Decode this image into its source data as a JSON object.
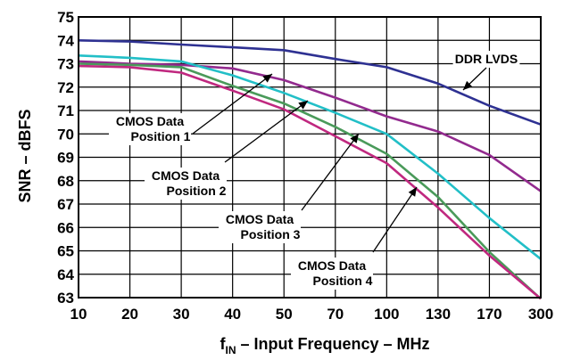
{
  "chart_data": {
    "type": "line",
    "x_axis_scale": "categorical (labels evenly spaced)",
    "x": [
      "10",
      "20",
      "30",
      "40",
      "50",
      "70",
      "100",
      "130",
      "170",
      "300"
    ],
    "xlabel_main": "f",
    "xlabel_sub": "IN",
    "xlabel_rest": " – Input Frequency – MHz",
    "ylabel": "SNR – dBFS",
    "ylim": [
      63,
      75
    ],
    "yticks": [
      "63",
      "64",
      "65",
      "66",
      "67",
      "68",
      "69",
      "70",
      "71",
      "72",
      "73",
      "74",
      "75"
    ],
    "grid": true,
    "series": [
      {
        "name": "DDR LVDS",
        "color": "#2e3192",
        "values": [
          74.0,
          73.95,
          73.82,
          73.7,
          73.58,
          73.2,
          72.85,
          72.15,
          71.2,
          70.4
        ]
      },
      {
        "name": "CMOS Data Position 1",
        "color": "#922a8e",
        "values": [
          73.1,
          73.0,
          72.95,
          72.8,
          72.3,
          71.55,
          70.75,
          70.1,
          69.1,
          67.55
        ]
      },
      {
        "name": "CMOS Data Position 2",
        "color": "#22bfc7",
        "values": [
          73.35,
          73.25,
          73.1,
          72.5,
          71.75,
          70.9,
          70.0,
          68.3,
          66.4,
          64.65
        ]
      },
      {
        "name": "CMOS Data Position 3",
        "color": "#4a9a5a",
        "values": [
          73.0,
          72.95,
          72.85,
          72.05,
          71.3,
          70.3,
          69.15,
          67.3,
          64.95,
          62.95
        ]
      },
      {
        "name": "CMOS Data Position 4",
        "color": "#c0287f",
        "values": [
          72.9,
          72.85,
          72.62,
          71.85,
          71.05,
          69.9,
          68.75,
          66.85,
          64.8,
          62.95
        ]
      }
    ],
    "annotations": [
      {
        "lines": [
          "DDR LVDS"
        ],
        "series": 0
      },
      {
        "lines": [
          "CMOS Data",
          "Position 1"
        ],
        "series": 1
      },
      {
        "lines": [
          "CMOS Data",
          "Position 2"
        ],
        "series": 2
      },
      {
        "lines": [
          "CMOS Data",
          "Position 3"
        ],
        "series": 3
      },
      {
        "lines": [
          "CMOS Data",
          "Position 4"
        ],
        "series": 4
      }
    ]
  }
}
